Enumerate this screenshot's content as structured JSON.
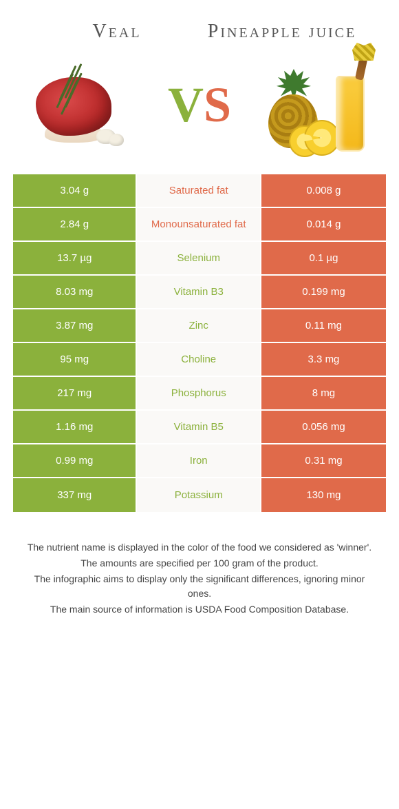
{
  "colors": {
    "left": "#8bb13c",
    "right": "#e06a4a",
    "mid_bg": "#faf9f7",
    "left_text_in_mid": "#8bb13c",
    "right_text_in_mid": "#e06a4a"
  },
  "header": {
    "left_title": "Veal",
    "right_title": "Pineapple juice",
    "vs_v": "V",
    "vs_s": "S"
  },
  "rows": [
    {
      "label": "Saturated fat",
      "left": "3.04 g",
      "right": "0.008 g",
      "winner": "right"
    },
    {
      "label": "Monounsaturated fat",
      "left": "2.84 g",
      "right": "0.014 g",
      "winner": "right"
    },
    {
      "label": "Selenium",
      "left": "13.7 µg",
      "right": "0.1 µg",
      "winner": "left"
    },
    {
      "label": "Vitamin B3",
      "left": "8.03 mg",
      "right": "0.199 mg",
      "winner": "left"
    },
    {
      "label": "Zinc",
      "left": "3.87 mg",
      "right": "0.11 mg",
      "winner": "left"
    },
    {
      "label": "Choline",
      "left": "95 mg",
      "right": "3.3 mg",
      "winner": "left"
    },
    {
      "label": "Phosphorus",
      "left": "217 mg",
      "right": "8 mg",
      "winner": "left"
    },
    {
      "label": "Vitamin B5",
      "left": "1.16 mg",
      "right": "0.056 mg",
      "winner": "left"
    },
    {
      "label": "Iron",
      "left": "0.99 mg",
      "right": "0.31 mg",
      "winner": "left"
    },
    {
      "label": "Potassium",
      "left": "337 mg",
      "right": "130 mg",
      "winner": "left"
    }
  ],
  "footer": {
    "l1": "The nutrient name is displayed in the color of the food we considered as 'winner'.",
    "l2": "The amounts are specified per 100 gram of the product.",
    "l3": "The infographic aims to display only the significant differences, ignoring minor ones.",
    "l4": "The main source of information is USDA Food Composition Database."
  }
}
